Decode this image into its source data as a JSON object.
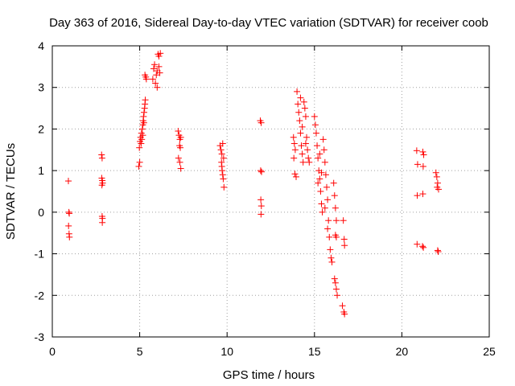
{
  "chart_data": {
    "type": "scatter",
    "title": "Day 363 of 2016, Sidereal Day-to-day VTEC variation (SDTVAR) for receiver coob",
    "xlabel": "GPS time / hours",
    "ylabel": "SDTVAR / TECUs",
    "xlim": [
      0,
      25
    ],
    "ylim": [
      -3,
      4
    ],
    "x_ticks": [
      0,
      5,
      10,
      15,
      20,
      25
    ],
    "y_ticks": [
      -3,
      -2,
      -1,
      0,
      1,
      2,
      3,
      4
    ],
    "grid": true,
    "marker": "plus",
    "series_color": "#ff0000",
    "series": [
      {
        "name": "SDTVAR",
        "points": [
          [
            0.92,
            0.75
          ],
          [
            0.95,
            0.0
          ],
          [
            0.97,
            -0.03
          ],
          [
            0.93,
            -0.33
          ],
          [
            0.96,
            -0.52
          ],
          [
            0.98,
            -0.6
          ],
          [
            2.82,
            1.38
          ],
          [
            2.85,
            1.3
          ],
          [
            2.83,
            0.82
          ],
          [
            2.86,
            0.76
          ],
          [
            2.88,
            0.7
          ],
          [
            2.84,
            0.65
          ],
          [
            2.85,
            -0.1
          ],
          [
            2.87,
            -0.15
          ],
          [
            2.86,
            -0.25
          ],
          [
            4.95,
            1.1
          ],
          [
            5.0,
            1.2
          ],
          [
            4.98,
            1.55
          ],
          [
            5.02,
            1.7
          ],
          [
            5.05,
            1.8
          ],
          [
            5.08,
            1.65
          ],
          [
            5.1,
            1.9
          ],
          [
            5.15,
            2.0
          ],
          [
            5.18,
            2.1
          ],
          [
            5.2,
            2.2
          ],
          [
            5.22,
            2.3
          ],
          [
            5.25,
            2.4
          ],
          [
            5.28,
            2.5
          ],
          [
            5.3,
            2.6
          ],
          [
            5.32,
            2.7
          ],
          [
            5.12,
            1.75
          ],
          [
            5.18,
            1.85
          ],
          [
            5.24,
            2.15
          ],
          [
            5.3,
            3.3
          ],
          [
            5.35,
            3.25
          ],
          [
            5.38,
            3.2
          ],
          [
            5.75,
            3.2
          ],
          [
            5.8,
            3.45
          ],
          [
            5.85,
            3.55
          ],
          [
            5.9,
            3.1
          ],
          [
            5.95,
            3.3
          ],
          [
            6.0,
            3.4
          ],
          [
            6.05,
            3.8
          ],
          [
            6.1,
            3.75
          ],
          [
            6.15,
            3.35
          ],
          [
            6.0,
            3.0
          ],
          [
            6.1,
            3.5
          ],
          [
            6.18,
            3.82
          ],
          [
            7.2,
            1.95
          ],
          [
            7.25,
            1.85
          ],
          [
            7.3,
            1.75
          ],
          [
            7.35,
            1.8
          ],
          [
            7.28,
            1.6
          ],
          [
            7.32,
            1.55
          ],
          [
            7.22,
            1.3
          ],
          [
            7.3,
            1.2
          ],
          [
            7.35,
            1.05
          ],
          [
            9.6,
            1.6
          ],
          [
            9.65,
            1.5
          ],
          [
            9.7,
            1.4
          ],
          [
            9.75,
            1.65
          ],
          [
            9.8,
            1.3
          ],
          [
            9.68,
            1.2
          ],
          [
            9.72,
            1.0
          ],
          [
            9.78,
            0.8
          ],
          [
            9.82,
            0.6
          ],
          [
            9.7,
            1.1
          ],
          [
            9.75,
            0.9
          ],
          [
            11.9,
            2.2
          ],
          [
            11.95,
            2.15
          ],
          [
            11.92,
            1.0
          ],
          [
            11.97,
            0.97
          ],
          [
            11.93,
            0.3
          ],
          [
            11.96,
            0.15
          ],
          [
            11.94,
            -0.05
          ],
          [
            13.8,
            1.8
          ],
          [
            13.85,
            1.65
          ],
          [
            13.9,
            1.5
          ],
          [
            13.82,
            1.3
          ],
          [
            13.88,
            0.92
          ],
          [
            13.95,
            0.85
          ],
          [
            14.0,
            2.9
          ],
          [
            14.05,
            2.6
          ],
          [
            14.1,
            2.4
          ],
          [
            14.15,
            2.2
          ],
          [
            14.2,
            1.9
          ],
          [
            14.25,
            1.6
          ],
          [
            14.3,
            1.4
          ],
          [
            14.35,
            1.2
          ],
          [
            14.4,
            2.65
          ],
          [
            14.45,
            2.5
          ],
          [
            14.5,
            2.3
          ],
          [
            14.55,
            1.8
          ],
          [
            14.6,
            1.5
          ],
          [
            14.65,
            1.3
          ],
          [
            14.7,
            1.2
          ],
          [
            14.2,
            2.75
          ],
          [
            14.3,
            2.05
          ],
          [
            14.5,
            1.65
          ],
          [
            15.0,
            2.3
          ],
          [
            15.05,
            2.1
          ],
          [
            15.1,
            1.9
          ],
          [
            15.15,
            1.6
          ],
          [
            15.2,
            1.3
          ],
          [
            15.25,
            1.0
          ],
          [
            15.3,
            0.8
          ],
          [
            15.35,
            0.5
          ],
          [
            15.4,
            0.2
          ],
          [
            15.45,
            0.0
          ],
          [
            15.5,
            1.75
          ],
          [
            15.55,
            1.5
          ],
          [
            15.6,
            1.2
          ],
          [
            15.65,
            0.9
          ],
          [
            15.7,
            0.6
          ],
          [
            15.75,
            0.3
          ],
          [
            15.8,
            -0.2
          ],
          [
            15.85,
            -0.6
          ],
          [
            15.9,
            -0.9
          ],
          [
            15.95,
            -1.1
          ],
          [
            16.0,
            -1.2
          ],
          [
            15.2,
            0.7
          ],
          [
            15.3,
            1.4
          ],
          [
            15.4,
            0.95
          ],
          [
            15.6,
            0.1
          ],
          [
            15.75,
            -0.4
          ],
          [
            16.1,
            0.7
          ],
          [
            16.15,
            0.4
          ],
          [
            16.2,
            0.1
          ],
          [
            16.25,
            -0.2
          ],
          [
            16.2,
            -0.55
          ],
          [
            16.25,
            -0.6
          ],
          [
            16.15,
            -1.6
          ],
          [
            16.2,
            -1.7
          ],
          [
            16.25,
            -1.85
          ],
          [
            16.3,
            -2.0
          ],
          [
            16.65,
            -0.2
          ],
          [
            16.7,
            -0.65
          ],
          [
            16.72,
            -0.8
          ],
          [
            16.6,
            -2.25
          ],
          [
            16.68,
            -2.4
          ],
          [
            16.72,
            -2.45
          ],
          [
            20.85,
            1.48
          ],
          [
            20.9,
            1.15
          ],
          [
            20.88,
            0.4
          ],
          [
            20.87,
            -0.77
          ],
          [
            21.2,
            1.45
          ],
          [
            21.25,
            1.38
          ],
          [
            21.22,
            1.1
          ],
          [
            21.2,
            0.44
          ],
          [
            21.18,
            -0.82
          ],
          [
            21.23,
            -0.85
          ],
          [
            21.95,
            0.95
          ],
          [
            22.0,
            0.85
          ],
          [
            22.05,
            0.7
          ],
          [
            22.02,
            0.6
          ],
          [
            22.1,
            0.55
          ],
          [
            22.05,
            -0.92
          ],
          [
            22.08,
            -0.95
          ]
        ]
      }
    ]
  }
}
